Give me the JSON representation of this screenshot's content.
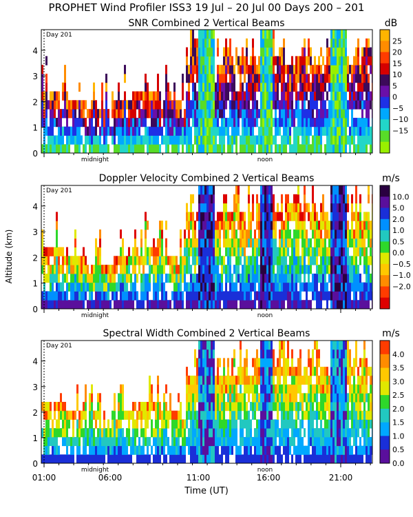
{
  "header": "PROPHET Wind Profiler ISS3  19 Jul – 20 Jul 00 Days 200 – 201",
  "ylabel": "Altitude (km)",
  "xlabel": "Time (UT)",
  "day_marker": "Day 201",
  "midnight_label": "midnight",
  "noon_label": "noon",
  "time_ticks": [
    "01:00",
    "06:00",
    "11:00",
    "16:00",
    "21:00"
  ],
  "alt_ticks": [
    "0",
    "1",
    "2",
    "3",
    "4"
  ],
  "chart_data": [
    {
      "type": "heatmap",
      "title": "SNR Combined 2 Vertical Beams",
      "units": "dB",
      "ylim": [
        0,
        4.8
      ],
      "colorbar": {
        "labels": [
          "25",
          "20",
          "15",
          "10",
          "5",
          "0",
          "−5",
          "−10",
          "−15"
        ],
        "colors": [
          "#ffb400",
          "#ff8c00",
          "#ff3c00",
          "#d50000",
          "#3c0a5a",
          "#6a0fa8",
          "#1e30e6",
          "#00a8ff",
          "#22d6c8",
          "#58dc28",
          "#99f000"
        ]
      }
    },
    {
      "type": "heatmap",
      "title": "Doppler Velocity Combined 2 Vertical Beams",
      "units": "m/s",
      "ylim": [
        0,
        4.8
      ],
      "colorbar": {
        "labels": [
          "10.0",
          "5.0",
          "2.0",
          "1.0",
          "0.5",
          "0.0",
          "−0.5",
          "−1.0",
          "−2.0"
        ],
        "colors": [
          "#2a0040",
          "#5a0f9c",
          "#1a2fd8",
          "#0090ff",
          "#22c8c0",
          "#2ed82a",
          "#e0e800",
          "#ffc800",
          "#ff8c00",
          "#ff3c00",
          "#dd0000"
        ]
      }
    },
    {
      "type": "heatmap",
      "title": "Spectral Width Combined 2 Vertical Beams",
      "units": "m/s",
      "ylim": [
        0,
        4.8
      ],
      "colorbar": {
        "labels": [
          "4.0",
          "3.5",
          "3.0",
          "2.5",
          "2.0",
          "1.5",
          "1.0",
          "0.5",
          "0.0"
        ],
        "colors": [
          "#ff3c00",
          "#ff8c00",
          "#ffc800",
          "#e0e800",
          "#2ed82a",
          "#22c8c0",
          "#00a8ff",
          "#1a2fd8",
          "#5a0f9c"
        ]
      }
    }
  ]
}
